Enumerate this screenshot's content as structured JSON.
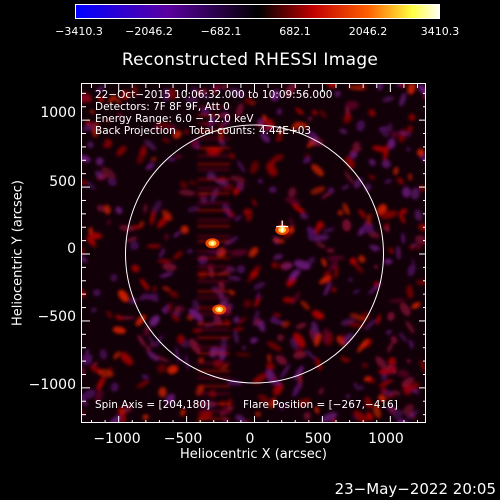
{
  "colorbar": {
    "tick_labels": [
      "−3410.3",
      "−2046.2",
      "−682.1",
      "682.1",
      "2046.2",
      "3410.3"
    ],
    "range": [
      -3410.3,
      3410.3
    ],
    "colors": [
      "#0000ff",
      "#5a00a0",
      "#000000",
      "#c00000",
      "#ff6000",
      "#ffff40",
      "#ffffff"
    ]
  },
  "plot": {
    "title": "Reconstructed RHESSI Image",
    "xlabel": "Heliocentric X (arcsec)",
    "ylabel": "Heliocentric Y (arcsec)",
    "x_ticks": [
      "−1000",
      "−500",
      "0",
      "500",
      "1000"
    ],
    "y_ticks": [
      "1000",
      "500",
      "0",
      "−500",
      "−1000"
    ],
    "xlim": [
      -1270,
      1270
    ],
    "ylim": [
      -1270,
      1270
    ],
    "annotations": {
      "time": "22−Oct−2015 10:06:32.000 to 10:09:56.000",
      "detectors": "Detectors: 7F 8F 9F, Att 0",
      "energy": "Energy Range: 6.0 − 12.0 keV",
      "method": "Back Projection    Total counts: 4.44E+03",
      "spin_axis": "Spin Axis = [204,180]",
      "flare_position": "Flare Position = [−267,−416]"
    },
    "bright_sources": [
      {
        "x": -310,
        "y": 80,
        "level": 0.95
      },
      {
        "x": -260,
        "y": -415,
        "level": 1.0
      },
      {
        "x": 204,
        "y": 180,
        "level": 0.9
      }
    ],
    "marker": {
      "x": 204,
      "y": 205,
      "symbol": "+"
    },
    "solar_disk_radius": 950
  },
  "footer": {
    "date": "23−May−2022 20:05"
  }
}
